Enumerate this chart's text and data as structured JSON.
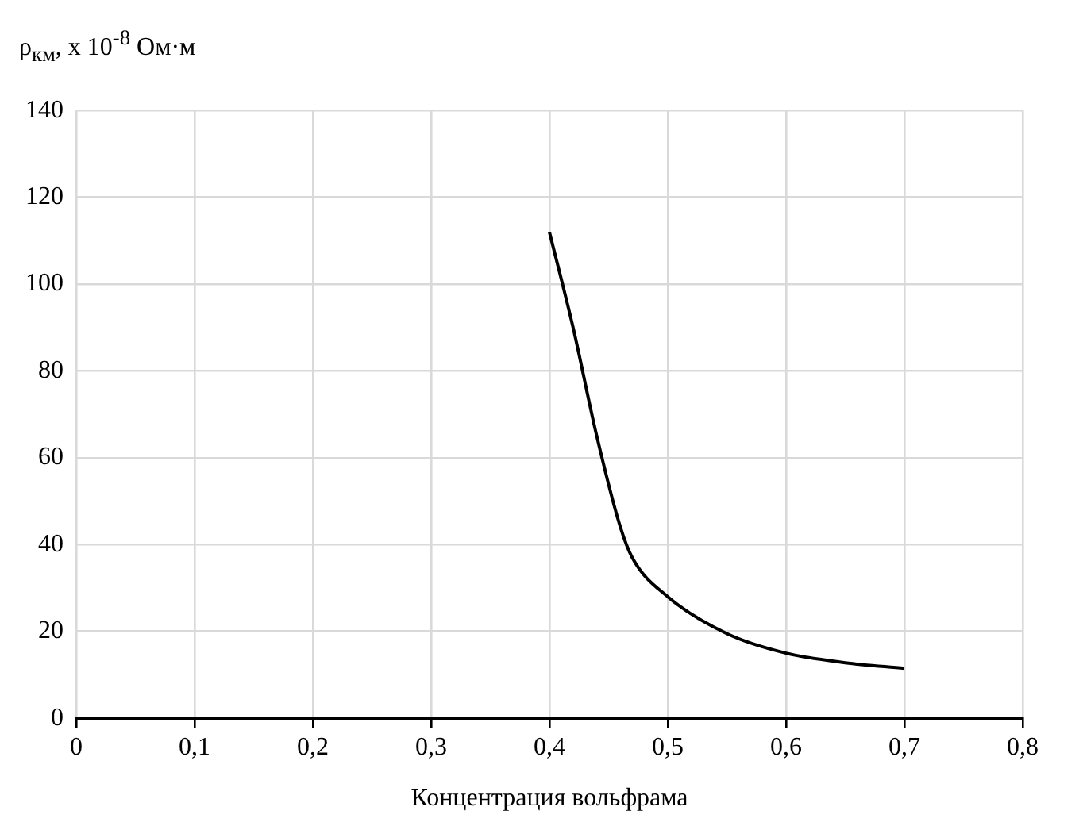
{
  "chart_data": {
    "type": "line",
    "ylabel": "ρ$_{км}$, x 10$^{-8}$ Ом·м",
    "xlabel": "Концентрация вольфрама",
    "series": [
      {
        "color": "#000000",
        "x": [
          0.4,
          0.42,
          0.44,
          0.46,
          0.47,
          0.5,
          0.55,
          0.6,
          0.65,
          0.7
        ],
        "values": [
          112,
          90,
          65,
          44,
          37,
          28,
          19.5,
          15,
          12.8,
          11.5
        ]
      }
    ],
    "xlim": [
      0,
      0.8
    ],
    "xticks": [
      0,
      {
        "value": 0.1,
        "label": "0,1"
      },
      {
        "value": 0.2,
        "label": "0,2"
      },
      {
        "value": 0.3,
        "label": "0,3"
      },
      {
        "value": 0.4,
        "label": "0,4"
      },
      {
        "value": 0.5,
        "label": "0,5"
      },
      {
        "value": 0.6,
        "label": "0,6"
      },
      {
        "value": 0.7,
        "label": "0,7"
      },
      {
        "value": 0.8,
        "label": "0,8"
      }
    ],
    "ylim": [
      0,
      140
    ],
    "yticks": [
      0,
      20,
      40,
      60,
      80,
      100,
      120,
      140
    ],
    "grid": true,
    "legend": false,
    "marker": "none",
    "line_style": "solid"
  }
}
